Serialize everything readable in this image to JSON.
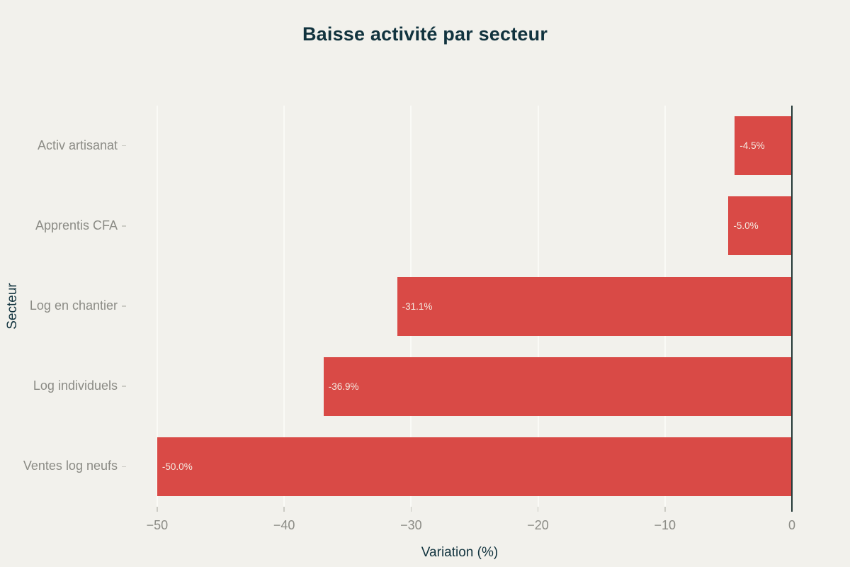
{
  "chart_data": {
    "type": "bar",
    "orientation": "horizontal",
    "title": "Baisse activité par secteur",
    "xlabel": "Variation (%)",
    "ylabel": "Secteur",
    "categories": [
      "Activ artisanat",
      "Apprentis CFA",
      "Log en chantier",
      "Log individuels",
      "Ventes log neufs"
    ],
    "values": [
      -4.5,
      -5.0,
      -31.1,
      -36.9,
      -50.0
    ],
    "bar_labels": [
      "-4.5%",
      "-5.0%",
      "-31.1%",
      "-36.9%",
      "-50.0%"
    ],
    "xticks": [
      -50,
      -40,
      -30,
      -20,
      -10,
      0
    ],
    "xtick_labels": [
      "−50",
      "−40",
      "−30",
      "−20",
      "−10",
      "0"
    ],
    "xlim": [
      -52.34,
      0
    ],
    "grid": true,
    "legend_position": "none",
    "colors": {
      "background": "#f2f1ec",
      "bar_fill": "#d94a46",
      "bar_label_text": "#f5eae1",
      "title_text": "#11333e",
      "axis_title_text": "#11333e",
      "tick_label_text": "#8b8b85",
      "gridline": "#fafaf6",
      "zero_line": "#253a38",
      "tick_mark": "#cbcbc4"
    }
  }
}
